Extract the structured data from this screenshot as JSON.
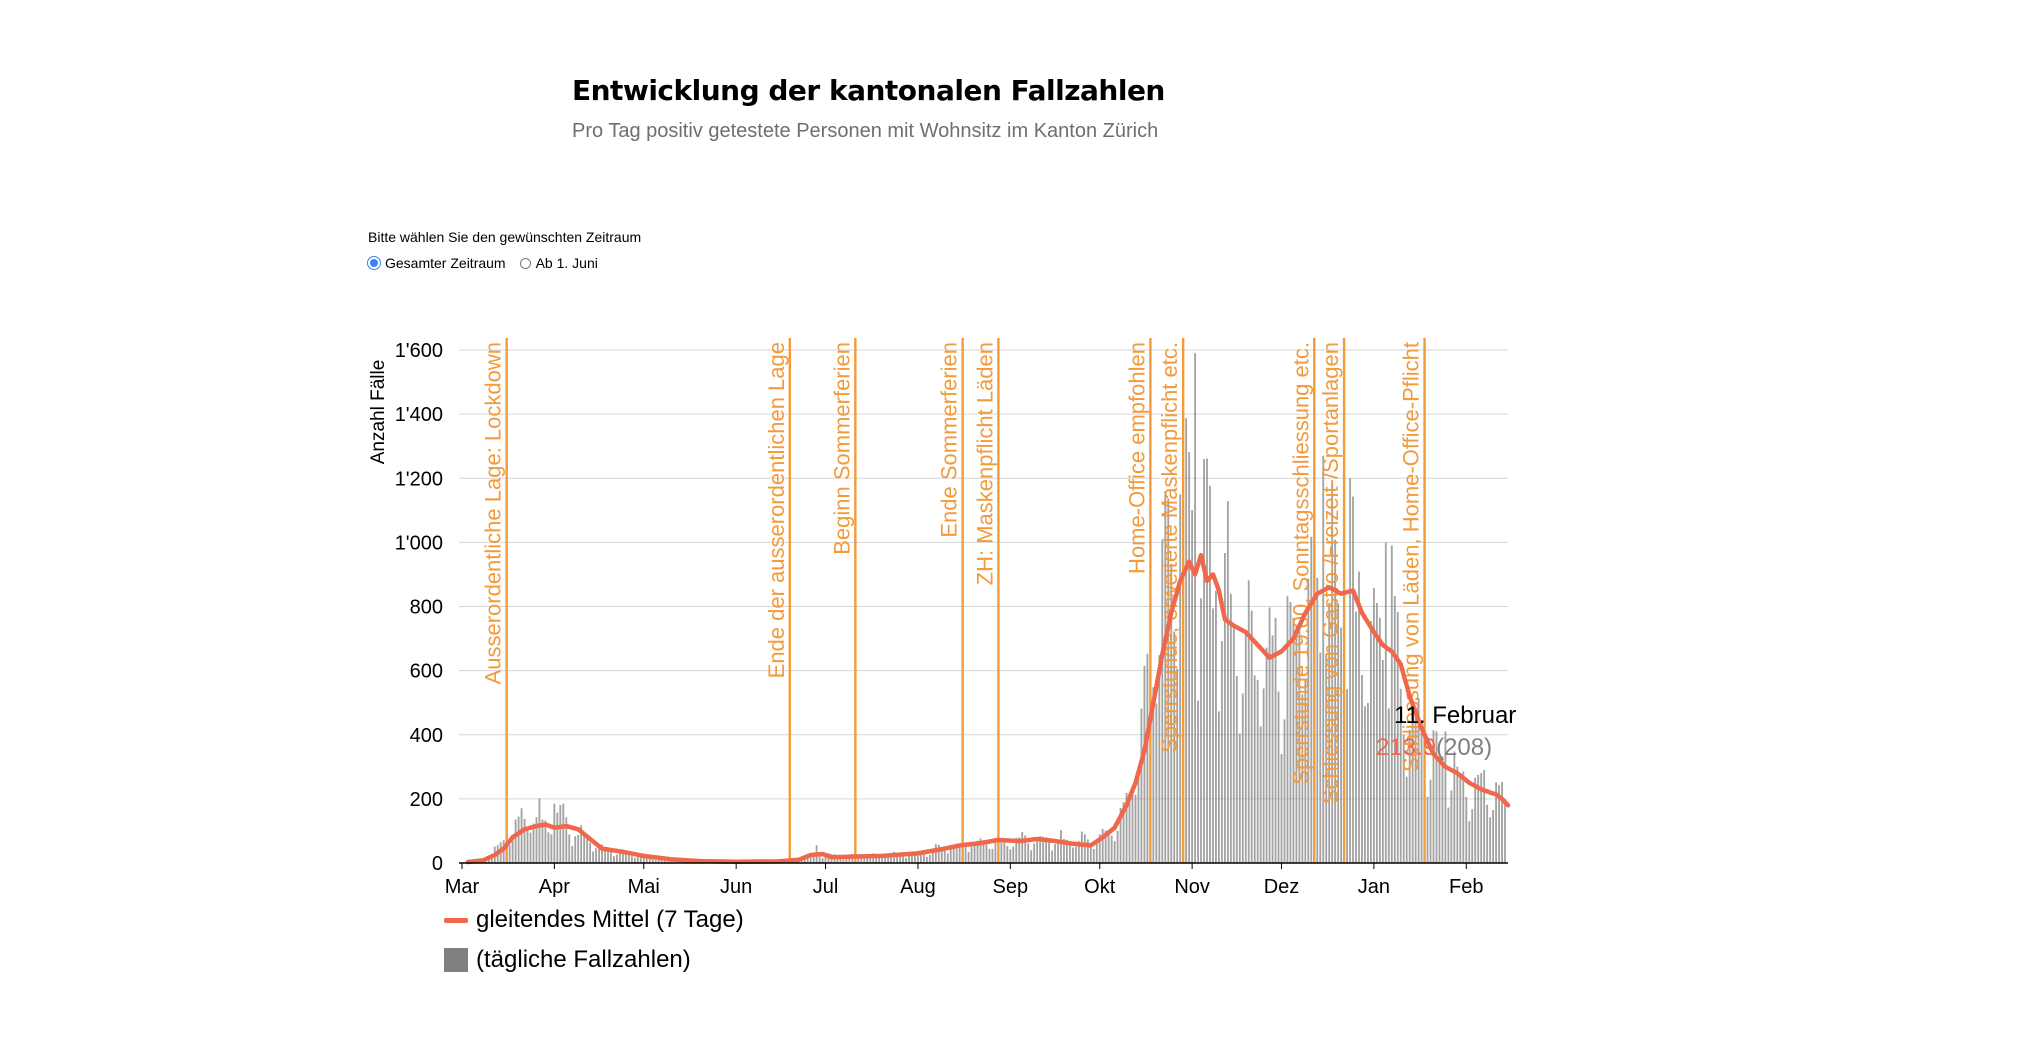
{
  "header": {
    "title": "Entwicklung der kantonalen Fallzahlen",
    "subtitle": "Pro Tag positiv getestete Personen mit Wohnsitz im Kanton Zürich"
  },
  "period_selector": {
    "label": "Bitte wählen Sie den gewünschten Zeitraum",
    "options": [
      {
        "label": "Gesamter Zeitraum",
        "checked": true
      },
      {
        "label": "Ab 1. Juni",
        "checked": false
      }
    ]
  },
  "legend": {
    "line_label": "gleitendes Mittel (7 Tage)",
    "bar_label": "(tägliche Fallzahlen)"
  },
  "colors": {
    "line": "#f0684b",
    "bars": "#7f7f7f",
    "annotation": "#f39a3b",
    "grid": "#d6d6d6",
    "tooltip_value": "#f0684b",
    "tooltip_count": "#7f7f7f"
  },
  "chart_data": {
    "type": "bar",
    "ylabel": "Anzahl Fälle",
    "xlabel": "",
    "x_range": [
      "2020-02-29",
      "2021-02-15"
    ],
    "ylim": [
      0,
      1600
    ],
    "y_ticks": [
      {
        "value": 0,
        "label": "0"
      },
      {
        "value": 200,
        "label": "200"
      },
      {
        "value": 400,
        "label": "400"
      },
      {
        "value": 600,
        "label": "600"
      },
      {
        "value": 800,
        "label": "800"
      },
      {
        "value": 1000,
        "label": "1'000"
      },
      {
        "value": 1200,
        "label": "1'200"
      },
      {
        "value": 1400,
        "label": "1'400"
      },
      {
        "value": 1600,
        "label": "1'600"
      }
    ],
    "x_ticks": [
      {
        "date": "2020-03-01",
        "label": "Mar"
      },
      {
        "date": "2020-04-01",
        "label": "Apr"
      },
      {
        "date": "2020-05-01",
        "label": "Mai"
      },
      {
        "date": "2020-06-01",
        "label": "Jun"
      },
      {
        "date": "2020-07-01",
        "label": "Jul"
      },
      {
        "date": "2020-08-01",
        "label": "Aug"
      },
      {
        "date": "2020-09-01",
        "label": "Sep"
      },
      {
        "date": "2020-10-01",
        "label": "Okt"
      },
      {
        "date": "2020-11-01",
        "label": "Nov"
      },
      {
        "date": "2020-12-01",
        "label": "Dez"
      },
      {
        "date": "2021-01-01",
        "label": "Jan"
      },
      {
        "date": "2021-02-01",
        "label": "Feb"
      }
    ],
    "grid": true,
    "legend_position": "bottom-left",
    "daily_cases_anchors": [
      [
        "2020-03-03",
        2
      ],
      [
        "2020-03-08",
        10
      ],
      [
        "2020-03-12",
        40
      ],
      [
        "2020-03-15",
        70
      ],
      [
        "2020-03-18",
        120
      ],
      [
        "2020-03-22",
        130
      ],
      [
        "2020-03-26",
        140
      ],
      [
        "2020-03-30",
        120
      ],
      [
        "2020-04-03",
        150
      ],
      [
        "2020-04-07",
        100
      ],
      [
        "2020-04-12",
        70
      ],
      [
        "2020-04-17",
        40
      ],
      [
        "2020-04-24",
        30
      ],
      [
        "2020-05-01",
        20
      ],
      [
        "2020-05-10",
        10
      ],
      [
        "2020-05-20",
        6
      ],
      [
        "2020-06-01",
        4
      ],
      [
        "2020-06-15",
        6
      ],
      [
        "2020-06-25",
        15
      ],
      [
        "2020-07-01",
        25
      ],
      [
        "2020-07-10",
        20
      ],
      [
        "2020-07-20",
        25
      ],
      [
        "2020-08-01",
        30
      ],
      [
        "2020-08-10",
        45
      ],
      [
        "2020-08-20",
        60
      ],
      [
        "2020-09-01",
        70
      ],
      [
        "2020-09-10",
        75
      ],
      [
        "2020-09-20",
        70
      ],
      [
        "2020-09-30",
        70
      ],
      [
        "2020-10-05",
        100
      ],
      [
        "2020-10-10",
        180
      ],
      [
        "2020-10-14",
        350
      ],
      [
        "2020-10-18",
        600
      ],
      [
        "2020-10-22",
        800
      ],
      [
        "2020-10-26",
        950
      ],
      [
        "2020-10-30",
        1000
      ],
      [
        "2020-11-03",
        950
      ],
      [
        "2020-11-07",
        900
      ],
      [
        "2020-11-12",
        800
      ],
      [
        "2020-11-17",
        720
      ],
      [
        "2020-11-22",
        650
      ],
      [
        "2020-11-27",
        650
      ],
      [
        "2020-12-01",
        640
      ],
      [
        "2020-12-06",
        700
      ],
      [
        "2020-12-10",
        800
      ],
      [
        "2020-12-15",
        860
      ],
      [
        "2020-12-20",
        840
      ],
      [
        "2020-12-25",
        800
      ],
      [
        "2020-12-30",
        700
      ],
      [
        "2021-01-04",
        650
      ],
      [
        "2021-01-09",
        580
      ],
      [
        "2021-01-14",
        450
      ],
      [
        "2021-01-19",
        380
      ],
      [
        "2021-01-24",
        300
      ],
      [
        "2021-01-29",
        270
      ],
      [
        "2021-02-03",
        240
      ],
      [
        "2021-02-08",
        220
      ],
      [
        "2021-02-11",
        208
      ],
      [
        "2021-02-14",
        180
      ]
    ],
    "daily_cases_peaks": [
      [
        "2020-04-01",
        185
      ],
      [
        "2020-06-28",
        55
      ],
      [
        "2020-10-23",
        1160
      ],
      [
        "2020-10-28",
        1150
      ],
      [
        "2020-11-02",
        1590
      ],
      [
        "2020-11-05",
        1260
      ],
      [
        "2020-12-15",
        1270
      ],
      [
        "2020-12-24",
        1200
      ],
      [
        "2021-01-05",
        1000
      ],
      [
        "2021-01-07",
        990
      ],
      [
        "2021-01-25",
        410
      ],
      [
        "2021-02-07",
        290
      ]
    ],
    "moving_average_anchors": [
      [
        "2020-03-03",
        3
      ],
      [
        "2020-03-08",
        8
      ],
      [
        "2020-03-12",
        25
      ],
      [
        "2020-03-15",
        45
      ],
      [
        "2020-03-18",
        80
      ],
      [
        "2020-03-22",
        105
      ],
      [
        "2020-03-26",
        115
      ],
      [
        "2020-03-29",
        120
      ],
      [
        "2020-04-01",
        110
      ],
      [
        "2020-04-05",
        115
      ],
      [
        "2020-04-09",
        105
      ],
      [
        "2020-04-13",
        75
      ],
      [
        "2020-04-17",
        45
      ],
      [
        "2020-04-24",
        35
      ],
      [
        "2020-05-01",
        22
      ],
      [
        "2020-05-10",
        12
      ],
      [
        "2020-05-20",
        6
      ],
      [
        "2020-06-01",
        4
      ],
      [
        "2020-06-15",
        5
      ],
      [
        "2020-06-22",
        10
      ],
      [
        "2020-06-26",
        25
      ],
      [
        "2020-06-30",
        28
      ],
      [
        "2020-07-03",
        18
      ],
      [
        "2020-07-10",
        20
      ],
      [
        "2020-07-20",
        22
      ],
      [
        "2020-08-01",
        30
      ],
      [
        "2020-08-10",
        45
      ],
      [
        "2020-08-15",
        55
      ],
      [
        "2020-08-22",
        62
      ],
      [
        "2020-08-28",
        72
      ],
      [
        "2020-09-04",
        68
      ],
      [
        "2020-09-10",
        75
      ],
      [
        "2020-09-15",
        70
      ],
      [
        "2020-09-22",
        60
      ],
      [
        "2020-09-28",
        55
      ],
      [
        "2020-10-02",
        80
      ],
      [
        "2020-10-06",
        110
      ],
      [
        "2020-10-10",
        180
      ],
      [
        "2020-10-13",
        250
      ],
      [
        "2020-10-16",
        350
      ],
      [
        "2020-10-19",
        500
      ],
      [
        "2020-10-22",
        650
      ],
      [
        "2020-10-25",
        780
      ],
      [
        "2020-10-28",
        880
      ],
      [
        "2020-10-31",
        940
      ],
      [
        "2020-11-02",
        900
      ],
      [
        "2020-11-04",
        960
      ],
      [
        "2020-11-06",
        880
      ],
      [
        "2020-11-08",
        900
      ],
      [
        "2020-11-10",
        850
      ],
      [
        "2020-11-12",
        760
      ],
      [
        "2020-11-15",
        740
      ],
      [
        "2020-11-19",
        720
      ],
      [
        "2020-11-23",
        680
      ],
      [
        "2020-11-27",
        640
      ],
      [
        "2020-12-01",
        660
      ],
      [
        "2020-12-05",
        700
      ],
      [
        "2020-12-09",
        780
      ],
      [
        "2020-12-13",
        840
      ],
      [
        "2020-12-17",
        860
      ],
      [
        "2020-12-21",
        840
      ],
      [
        "2020-12-25",
        850
      ],
      [
        "2020-12-28",
        780
      ],
      [
        "2021-01-01",
        720
      ],
      [
        "2021-01-04",
        680
      ],
      [
        "2021-01-07",
        660
      ],
      [
        "2021-01-10",
        620
      ],
      [
        "2021-01-13",
        520
      ],
      [
        "2021-01-17",
        420
      ],
      [
        "2021-01-21",
        340
      ],
      [
        "2021-01-25",
        300
      ],
      [
        "2021-01-29",
        280
      ],
      [
        "2021-02-02",
        250
      ],
      [
        "2021-02-06",
        230
      ],
      [
        "2021-02-09",
        220
      ],
      [
        "2021-02-11",
        213.9
      ],
      [
        "2021-02-13",
        200
      ],
      [
        "2021-02-15",
        180
      ]
    ],
    "annotations": [
      {
        "date": "2020-03-16",
        "label": "Ausserordentliche Lage: Lockdown"
      },
      {
        "date": "2020-06-19",
        "label": "Ende der ausserordentlichen Lage"
      },
      {
        "date": "2020-07-11",
        "label": "Beginn Sommerferien"
      },
      {
        "date": "2020-08-16",
        "label": "Ende Sommerferien"
      },
      {
        "date": "2020-08-28",
        "label": "ZH: Maskenpflicht Läden"
      },
      {
        "date": "2020-10-18",
        "label": "Home-Office empfohlen"
      },
      {
        "date": "2020-10-29",
        "label": "Sperrstunde, erweiterte Maskenpflicht etc."
      },
      {
        "date": "2020-12-12",
        "label": "Sperrstunde 19.00, Sonntagsschliessung etc."
      },
      {
        "date": "2020-12-22",
        "label": "Schliessung von Gastro-/Freizeit-/Sportanlagen"
      },
      {
        "date": "2021-01-18",
        "label": "Schliessung von Läden, Home-Office-Pflicht"
      }
    ],
    "tooltip": {
      "date_label": "11. Februar",
      "moving_average": "213.9",
      "daily_cases": "(208)"
    }
  }
}
